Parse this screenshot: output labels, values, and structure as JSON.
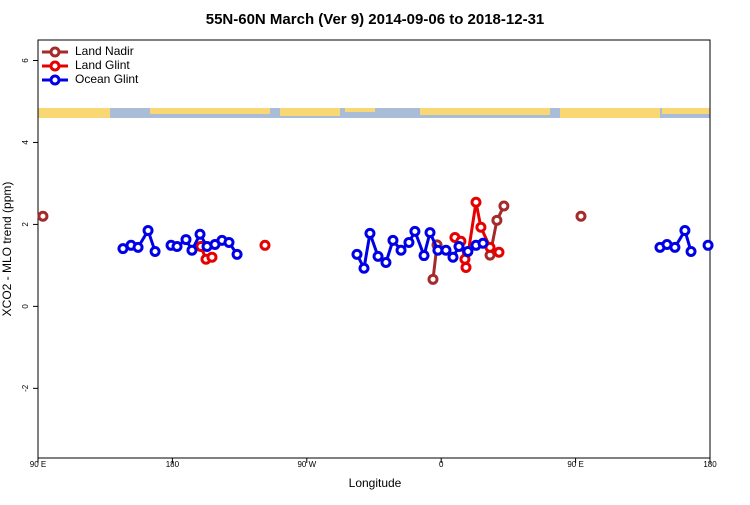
{
  "chart_data": {
    "type": "line",
    "title": "55N-60N March (Ver 9)   2014-09-06 to 2018-12-31",
    "x_label": "Longitude",
    "y_label": "XCO2 - MLO trend (ppm)",
    "xlim": [
      90,
      540
    ],
    "ylim": [
      -3.7,
      6.5
    ],
    "xticks": [
      {
        "value": 90,
        "label": "90 E"
      },
      {
        "value": 180,
        "label": "180"
      },
      {
        "value": 270,
        "label": "90 W"
      },
      {
        "value": 360,
        "label": "0"
      },
      {
        "value": 450,
        "label": "90 E"
      },
      {
        "value": 540,
        "label": "180"
      }
    ],
    "yticks": [
      -2,
      0,
      2,
      4,
      6
    ],
    "legend": "top-left",
    "series": [
      {
        "name": "Land Nadir",
        "color": "#a52a2a",
        "x": [
          93.3,
          null,
          354.5,
          357.2,
          null,
          392.7,
          397.3,
          402.0,
          null,
          453.6
        ],
        "values": [
          2.2,
          null,
          0.66,
          1.5,
          null,
          1.25,
          2.1,
          2.45,
          null,
          2.2
        ]
      },
      {
        "name": "Land Glint",
        "color": "#e60000",
        "x": [
          199.1,
          202.5,
          206.5,
          null,
          242.0,
          null,
          369.2,
          373.2,
          375.9,
          376.6,
          383.3,
          386.6,
          392.7,
          398.7
        ],
        "values": [
          1.46,
          1.15,
          1.2,
          null,
          1.49,
          null,
          1.68,
          1.59,
          1.15,
          0.95,
          2.54,
          1.93,
          1.44,
          1.32
        ]
      },
      {
        "name": "Ocean Glint",
        "color": "#0000e6",
        "x": [
          146.9,
          152.3,
          157.0,
          163.7,
          168.4,
          null,
          179.1,
          183.1,
          189.1,
          193.1,
          198.5,
          203.2,
          208.5,
          213.2,
          217.9,
          223.3,
          null,
          303.6,
          308.3,
          312.3,
          317.7,
          323.0,
          327.7,
          333.1,
          338.4,
          342.4,
          348.5,
          352.5,
          357.8,
          363.2,
          367.9,
          371.9,
          377.9,
          383.3,
          388.0,
          null,
          506.5,
          511.2,
          516.5,
          523.2,
          527.3,
          null,
          538.7
        ],
        "values": [
          1.41,
          1.49,
          1.44,
          1.85,
          1.34,
          null,
          1.49,
          1.46,
          1.63,
          1.37,
          1.76,
          1.46,
          1.51,
          1.61,
          1.56,
          1.27,
          null,
          1.27,
          0.93,
          1.78,
          1.22,
          1.07,
          1.61,
          1.37,
          1.56,
          1.83,
          1.24,
          1.8,
          1.37,
          1.37,
          1.2,
          1.46,
          1.34,
          1.49,
          1.54,
          null,
          1.44,
          1.51,
          1.44,
          1.85,
          1.34,
          null,
          1.49
        ]
      }
    ]
  }
}
